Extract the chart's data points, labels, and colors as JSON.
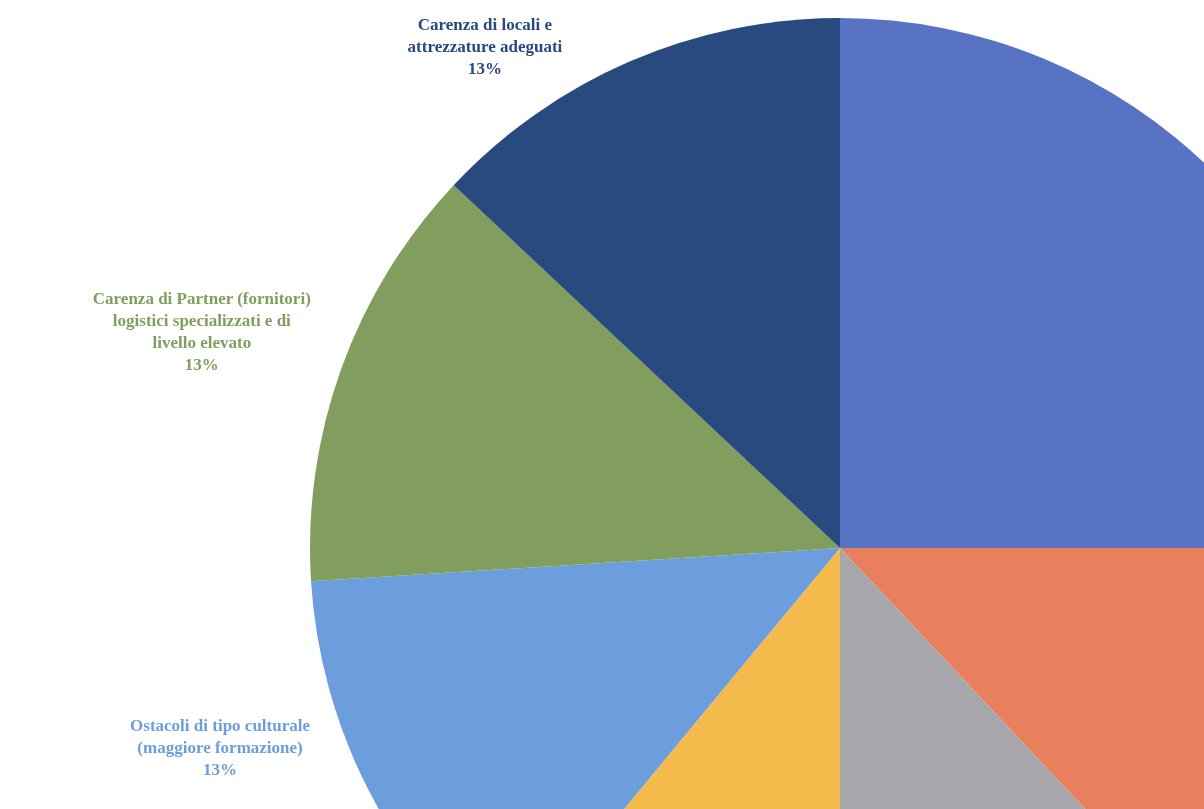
{
  "chart_data": {
    "type": "pie",
    "categories": [
      null,
      null,
      null,
      null,
      "Ostacoli di tipo culturale (maggiore formazione)",
      "Carenza di Partner (fornitori) logistici specializzati e di livello elevato",
      "Carenza di locali e attrezzature adeguati"
    ],
    "values": [
      25,
      13,
      12,
      11,
      13,
      13,
      13
    ],
    "colors": [
      "#5873c4",
      "#e8805e",
      "#a6a6ab",
      "#f5ba4c",
      "#6c9ddc",
      "#819e5e",
      "#284a7e"
    ],
    "value_labels": [
      null,
      null,
      null,
      null,
      "13%",
      "13%",
      "13%"
    ]
  }
}
